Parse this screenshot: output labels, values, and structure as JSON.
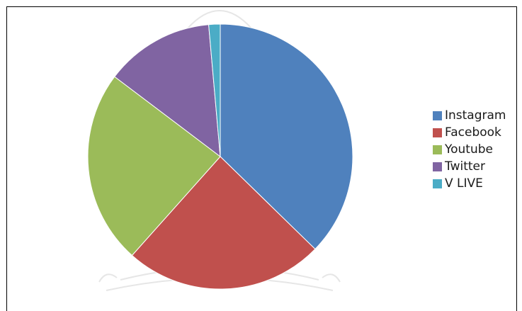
{
  "chart_data": {
    "type": "pie",
    "title": "",
    "categories": [
      "Instagram",
      "Facebook",
      "Youtube",
      "Twitter",
      "V LIVE"
    ],
    "values": [
      37.3,
      24.3,
      23.7,
      13.3,
      1.4
    ],
    "colors": [
      "#4F81BD",
      "#C0504D",
      "#9BBB59",
      "#8064A2",
      "#4BACC6"
    ],
    "start_angle_deg": 0,
    "direction": "clockwise",
    "legend_position": "right"
  }
}
